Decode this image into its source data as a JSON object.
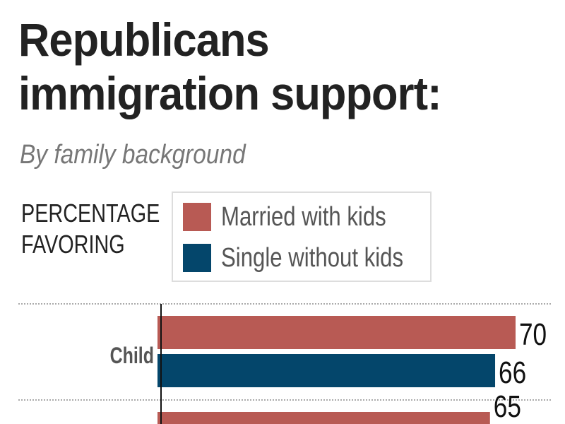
{
  "chart_data": {
    "type": "bar",
    "orientation": "horizontal",
    "title": "Republicans immigration support:",
    "title_lines": [
      "Republicans",
      "immigration support:"
    ],
    "subtitle": "By family background",
    "ylabel_lines": [
      "PERCENTAGE",
      "FAVORING"
    ],
    "categories": [
      "Child",
      ""
    ],
    "series": [
      {
        "name": "Married with kids",
        "color": "#b85a54",
        "values": [
          70,
          65
        ]
      },
      {
        "name": "Single without kids",
        "color": "#04466b",
        "values": [
          66,
          null
        ]
      }
    ],
    "data_labels": [
      [
        "70",
        "65"
      ],
      [
        "66",
        ""
      ]
    ],
    "xlim": [
      0,
      70
    ],
    "legend": "top",
    "grid": "dotted separators between categories"
  }
}
